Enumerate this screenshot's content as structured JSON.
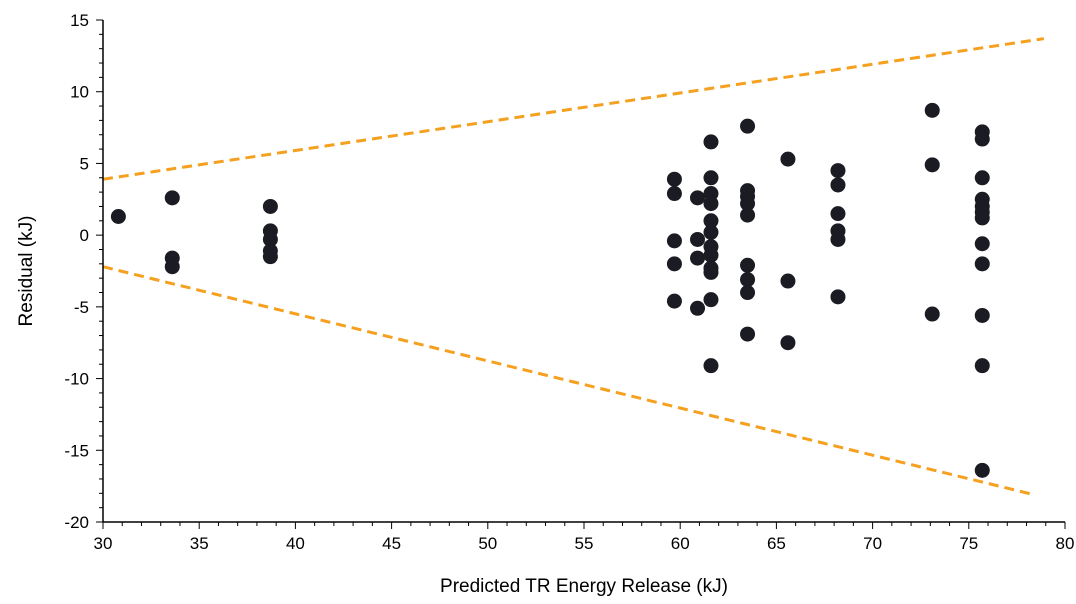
{
  "chart_data": {
    "type": "scatter",
    "xlabel": "Predicted TR Energy Release (kJ)",
    "ylabel": "Residual (kJ)",
    "xlim": [
      30,
      80
    ],
    "ylim": [
      -20,
      15
    ],
    "x_ticks": [
      "30",
      "35",
      "40",
      "45",
      "50",
      "55",
      "60",
      "65",
      "70",
      "75",
      "80"
    ],
    "y_ticks": [
      "15",
      "10",
      "5",
      "0",
      "-5",
      "-10",
      "-15",
      "-20"
    ],
    "grid": false,
    "colors": {
      "points": "#1b1b24",
      "bounds": "#f5a01e",
      "axis": "#000000"
    },
    "series": [
      {
        "type": "scatter",
        "points": [
          [
            30.8,
            1.3
          ],
          [
            33.6,
            2.6
          ],
          [
            33.6,
            -1.6
          ],
          [
            33.6,
            -2.2
          ],
          [
            38.7,
            2.0
          ],
          [
            38.7,
            0.3
          ],
          [
            38.7,
            -0.3
          ],
          [
            38.7,
            -1.1
          ],
          [
            38.7,
            -1.5
          ],
          [
            59.7,
            3.9
          ],
          [
            59.7,
            2.9
          ],
          [
            59.7,
            -0.4
          ],
          [
            59.7,
            -2.0
          ],
          [
            59.7,
            -4.6
          ],
          [
            60.9,
            2.6
          ],
          [
            60.9,
            -0.3
          ],
          [
            60.9,
            -1.6
          ],
          [
            60.9,
            -5.1
          ],
          [
            61.6,
            6.5
          ],
          [
            61.6,
            4.0
          ],
          [
            61.6,
            2.9
          ],
          [
            61.6,
            2.2
          ],
          [
            61.6,
            1.0
          ],
          [
            61.6,
            0.2
          ],
          [
            61.6,
            -0.8
          ],
          [
            61.6,
            -1.4
          ],
          [
            61.6,
            -2.3
          ],
          [
            61.6,
            -2.6
          ],
          [
            61.6,
            -4.5
          ],
          [
            61.6,
            -9.1
          ],
          [
            63.5,
            7.6
          ],
          [
            63.5,
            3.1
          ],
          [
            63.5,
            2.7
          ],
          [
            63.5,
            2.2
          ],
          [
            63.5,
            1.4
          ],
          [
            63.5,
            -2.1
          ],
          [
            63.5,
            -3.1
          ],
          [
            63.5,
            -4.0
          ],
          [
            63.5,
            -6.9
          ],
          [
            65.6,
            5.3
          ],
          [
            65.6,
            -3.2
          ],
          [
            65.6,
            -7.5
          ],
          [
            68.2,
            4.5
          ],
          [
            68.2,
            3.5
          ],
          [
            68.2,
            1.5
          ],
          [
            68.2,
            0.3
          ],
          [
            68.2,
            -0.3
          ],
          [
            68.2,
            -4.3
          ],
          [
            73.1,
            8.7
          ],
          [
            73.1,
            4.9
          ],
          [
            73.1,
            -5.5
          ],
          [
            75.7,
            7.2
          ],
          [
            75.7,
            6.7
          ],
          [
            75.7,
            4.0
          ],
          [
            75.7,
            2.5
          ],
          [
            75.7,
            2.0
          ],
          [
            75.7,
            1.6
          ],
          [
            75.7,
            1.2
          ],
          [
            75.7,
            -0.6
          ],
          [
            75.7,
            -2.0
          ],
          [
            75.7,
            -5.6
          ],
          [
            75.7,
            -9.1
          ],
          [
            75.7,
            -16.4
          ]
        ]
      },
      {
        "type": "line",
        "style": "dashed",
        "points": [
          [
            30,
            3.9
          ],
          [
            78.9,
            13.7
          ]
        ]
      },
      {
        "type": "line",
        "style": "dashed",
        "points": [
          [
            30,
            -2.2
          ],
          [
            78.4,
            -18.1
          ]
        ]
      }
    ]
  }
}
